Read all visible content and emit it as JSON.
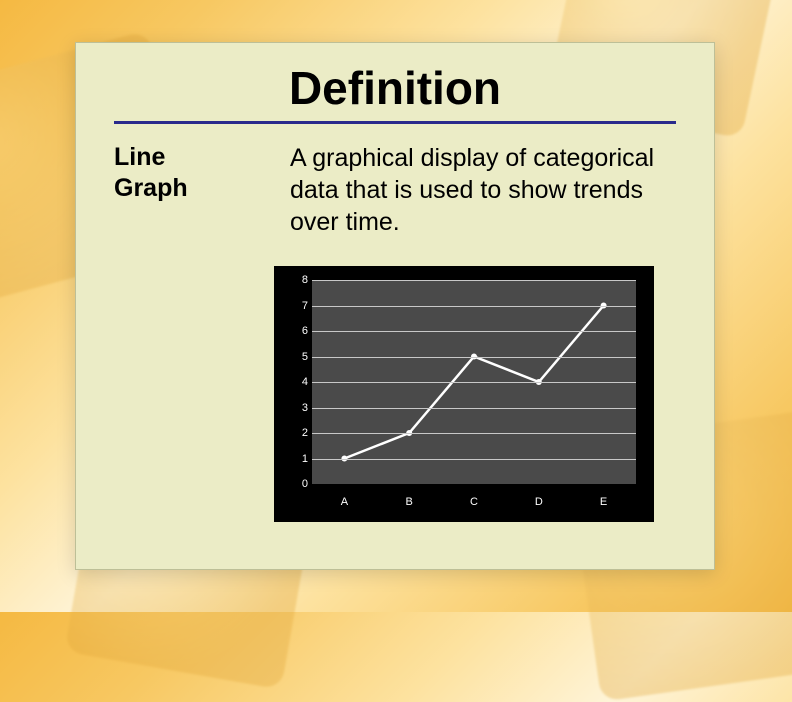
{
  "slide": {
    "title": "Definition",
    "term_line1": "Line",
    "term_line2": "Graph",
    "definition": "A graphical display of categorical data that is used to show trends over time."
  },
  "chart": {
    "type": "line",
    "categories": [
      "A",
      "B",
      "C",
      "D",
      "E"
    ],
    "values": [
      1,
      2,
      5,
      4,
      7
    ],
    "ylim": [
      0,
      8
    ],
    "ytick_step": 1,
    "yticks": [
      0,
      1,
      2,
      3,
      4,
      5,
      6,
      7,
      8
    ],
    "line_color": "#ffffff",
    "line_width": 2.5,
    "marker_style": "circle",
    "marker_size": 3,
    "marker_color": "#ffffff",
    "plot_background": "#4a4a4a",
    "frame_background": "#000000",
    "grid_color": "#c8c8c8",
    "tick_label_color": "#ffffff",
    "tick_fontsize": 11
  },
  "card": {
    "background_color": "#ebecc6",
    "rule_color": "#2a2a8c",
    "title_fontsize": 46,
    "body_fontsize": 25
  },
  "page": {
    "background_gradient_colors": [
      "#f5b942",
      "#fef4d8",
      "#f5b942"
    ]
  }
}
